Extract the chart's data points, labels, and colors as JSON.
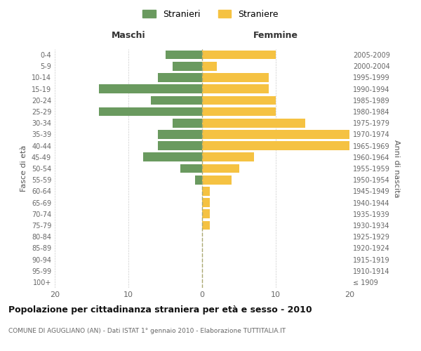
{
  "age_groups": [
    "100+",
    "95-99",
    "90-94",
    "85-89",
    "80-84",
    "75-79",
    "70-74",
    "65-69",
    "60-64",
    "55-59",
    "50-54",
    "45-49",
    "40-44",
    "35-39",
    "30-34",
    "25-29",
    "20-24",
    "15-19",
    "10-14",
    "5-9",
    "0-4"
  ],
  "birth_years": [
    "≤ 1909",
    "1910-1914",
    "1915-1919",
    "1920-1924",
    "1925-1929",
    "1930-1934",
    "1935-1939",
    "1940-1944",
    "1945-1949",
    "1950-1954",
    "1955-1959",
    "1960-1964",
    "1965-1969",
    "1970-1974",
    "1975-1979",
    "1980-1984",
    "1985-1989",
    "1990-1994",
    "1995-1999",
    "2000-2004",
    "2005-2009"
  ],
  "maschi": [
    0,
    0,
    0,
    0,
    0,
    0,
    0,
    0,
    0,
    1,
    3,
    8,
    6,
    6,
    4,
    14,
    7,
    14,
    6,
    4,
    5
  ],
  "femmine": [
    0,
    0,
    0,
    0,
    0,
    1,
    1,
    1,
    1,
    4,
    5,
    7,
    20,
    20,
    14,
    10,
    10,
    9,
    9,
    2,
    10
  ],
  "maschi_color": "#6a9a5f",
  "femmine_color": "#f5c242",
  "title": "Popolazione per cittadinanza straniera per età e sesso - 2010",
  "subtitle": "COMUNE DI AGUGLIANO (AN) - Dati ISTAT 1° gennaio 2010 - Elaborazione TUTTITALIA.IT",
  "ylabel_left": "Fasce di età",
  "ylabel_right": "Anni di nascita",
  "xlabel_left": "Maschi",
  "xlabel_right": "Femmine",
  "legend_stranieri": "Stranieri",
  "legend_straniere": "Straniere",
  "xlim": 20,
  "background_color": "#ffffff",
  "grid_color": "#cccccc"
}
